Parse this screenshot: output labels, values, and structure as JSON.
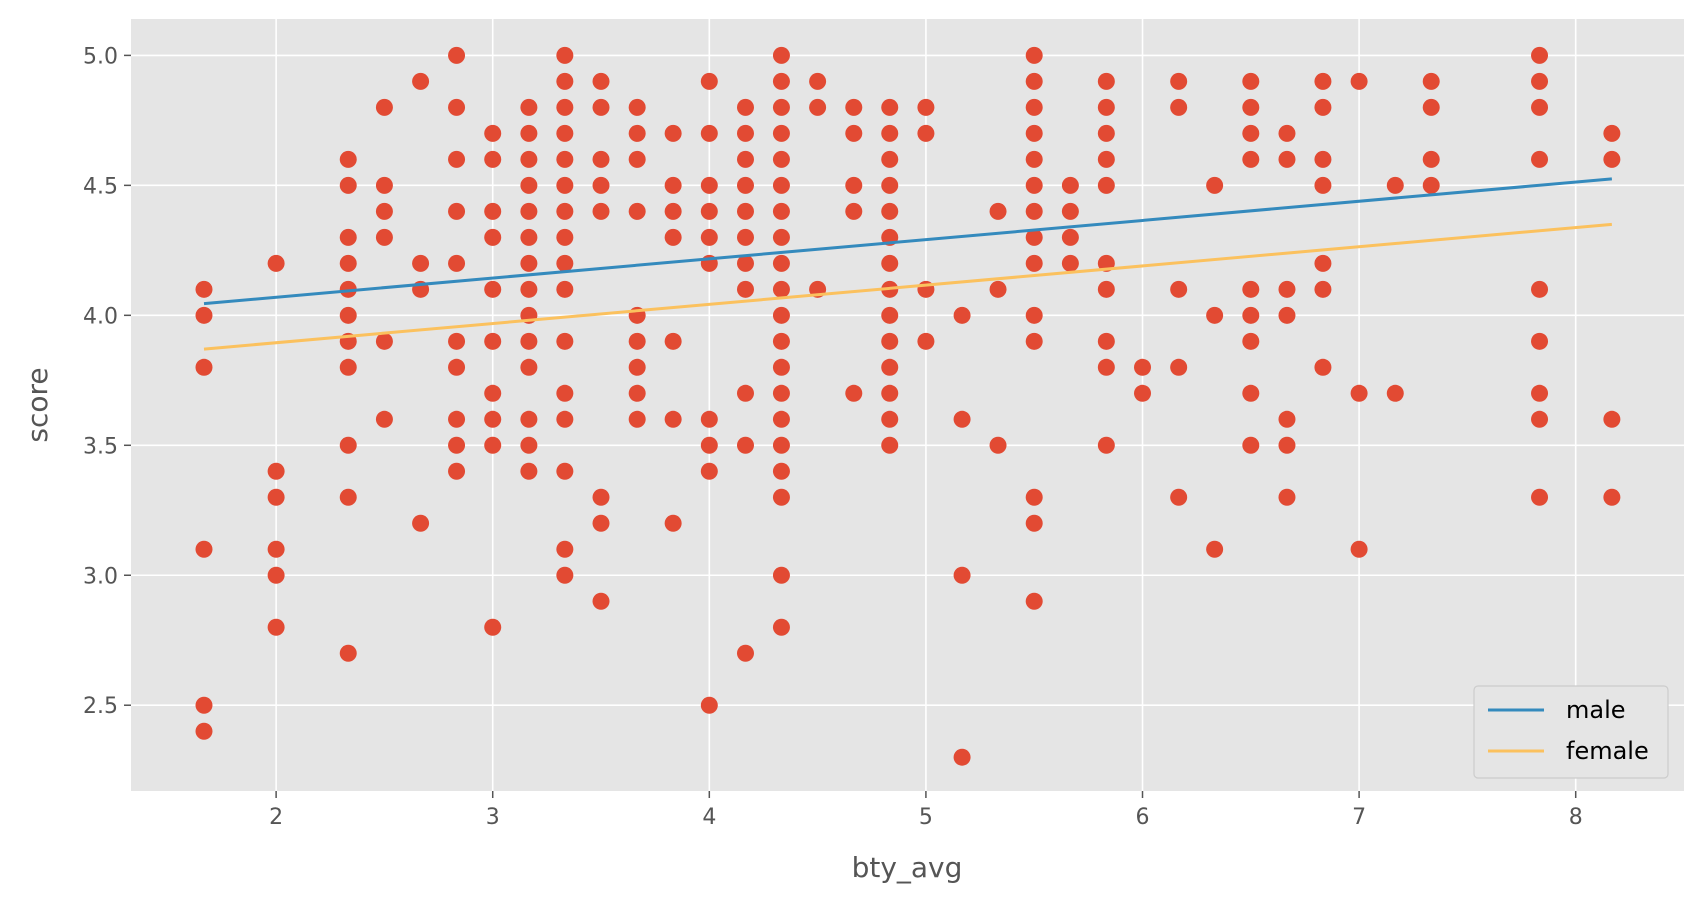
{
  "chart_data": {
    "type": "scatter",
    "title": "",
    "xlabel": "bty_avg",
    "ylabel": "score",
    "xlim": [
      1.33,
      8.5
    ],
    "ylim": [
      2.17,
      5.14
    ],
    "xticks": [
      "2",
      "3",
      "4",
      "5",
      "6",
      "7",
      "8"
    ],
    "yticks": [
      "2.5",
      "3.0",
      "3.5",
      "4.0",
      "4.5",
      "5.0"
    ],
    "grid": true,
    "legend_position": "bottom-right",
    "colors": {
      "background": "#e5e5e5",
      "grid": "#ffffff",
      "points": "#e24a33",
      "male": "#348abd",
      "female": "#fbc15e",
      "text": "#555555"
    },
    "points": [
      [
        1.667,
        4.1
      ],
      [
        1.667,
        4.0
      ],
      [
        1.667,
        3.8
      ],
      [
        1.667,
        3.1
      ],
      [
        1.667,
        2.5
      ],
      [
        1.667,
        2.4
      ],
      [
        2.0,
        4.2
      ],
      [
        2.0,
        3.4
      ],
      [
        2.0,
        3.3
      ],
      [
        2.0,
        3.1
      ],
      [
        2.0,
        3.0
      ],
      [
        2.0,
        2.8
      ],
      [
        2.333,
        4.6
      ],
      [
        2.333,
        4.5
      ],
      [
        2.333,
        4.3
      ],
      [
        2.333,
        4.2
      ],
      [
        2.333,
        4.1
      ],
      [
        2.333,
        4.0
      ],
      [
        2.333,
        3.9
      ],
      [
        2.333,
        3.8
      ],
      [
        2.333,
        3.5
      ],
      [
        2.333,
        3.3
      ],
      [
        2.333,
        2.7
      ],
      [
        2.5,
        4.8
      ],
      [
        2.5,
        4.5
      ],
      [
        2.5,
        4.4
      ],
      [
        2.5,
        4.3
      ],
      [
        2.5,
        3.9
      ],
      [
        2.5,
        3.6
      ],
      [
        2.667,
        4.9
      ],
      [
        2.667,
        4.2
      ],
      [
        2.667,
        4.1
      ],
      [
        2.667,
        3.2
      ],
      [
        2.833,
        5.0
      ],
      [
        2.833,
        4.8
      ],
      [
        2.833,
        4.6
      ],
      [
        2.833,
        4.4
      ],
      [
        2.833,
        4.2
      ],
      [
        2.833,
        3.9
      ],
      [
        2.833,
        3.8
      ],
      [
        2.833,
        3.6
      ],
      [
        2.833,
        3.5
      ],
      [
        2.833,
        3.4
      ],
      [
        3.0,
        4.7
      ],
      [
        3.0,
        4.6
      ],
      [
        3.0,
        4.4
      ],
      [
        3.0,
        4.3
      ],
      [
        3.0,
        4.1
      ],
      [
        3.0,
        3.9
      ],
      [
        3.0,
        3.7
      ],
      [
        3.0,
        3.6
      ],
      [
        3.0,
        3.5
      ],
      [
        3.0,
        2.8
      ],
      [
        3.167,
        4.8
      ],
      [
        3.167,
        4.7
      ],
      [
        3.167,
        4.6
      ],
      [
        3.167,
        4.5
      ],
      [
        3.167,
        4.4
      ],
      [
        3.167,
        4.3
      ],
      [
        3.167,
        4.2
      ],
      [
        3.167,
        4.1
      ],
      [
        3.167,
        4.0
      ],
      [
        3.167,
        3.9
      ],
      [
        3.167,
        3.8
      ],
      [
        3.167,
        3.6
      ],
      [
        3.167,
        3.5
      ],
      [
        3.167,
        3.4
      ],
      [
        3.333,
        5.0
      ],
      [
        3.333,
        4.9
      ],
      [
        3.333,
        4.8
      ],
      [
        3.333,
        4.7
      ],
      [
        3.333,
        4.6
      ],
      [
        3.333,
        4.5
      ],
      [
        3.333,
        4.4
      ],
      [
        3.333,
        4.3
      ],
      [
        3.333,
        4.2
      ],
      [
        3.333,
        4.1
      ],
      [
        3.333,
        3.9
      ],
      [
        3.333,
        3.7
      ],
      [
        3.333,
        3.6
      ],
      [
        3.333,
        3.4
      ],
      [
        3.333,
        3.1
      ],
      [
        3.333,
        3.0
      ],
      [
        3.5,
        4.9
      ],
      [
        3.5,
        4.8
      ],
      [
        3.5,
        4.6
      ],
      [
        3.5,
        4.5
      ],
      [
        3.5,
        4.4
      ],
      [
        3.5,
        3.3
      ],
      [
        3.5,
        3.2
      ],
      [
        3.5,
        2.9
      ],
      [
        3.667,
        4.8
      ],
      [
        3.667,
        4.7
      ],
      [
        3.667,
        4.6
      ],
      [
        3.667,
        4.4
      ],
      [
        3.667,
        4.0
      ],
      [
        3.667,
        3.9
      ],
      [
        3.667,
        3.8
      ],
      [
        3.667,
        3.7
      ],
      [
        3.667,
        3.6
      ],
      [
        3.833,
        4.7
      ],
      [
        3.833,
        4.5
      ],
      [
        3.833,
        4.4
      ],
      [
        3.833,
        4.3
      ],
      [
        3.833,
        3.9
      ],
      [
        3.833,
        3.6
      ],
      [
        3.833,
        3.2
      ],
      [
        4.0,
        4.9
      ],
      [
        4.0,
        4.7
      ],
      [
        4.0,
        4.5
      ],
      [
        4.0,
        4.4
      ],
      [
        4.0,
        4.3
      ],
      [
        4.0,
        4.2
      ],
      [
        4.0,
        3.6
      ],
      [
        4.0,
        3.5
      ],
      [
        4.0,
        3.4
      ],
      [
        4.0,
        2.5
      ],
      [
        4.167,
        4.8
      ],
      [
        4.167,
        4.7
      ],
      [
        4.167,
        4.6
      ],
      [
        4.167,
        4.5
      ],
      [
        4.167,
        4.4
      ],
      [
        4.167,
        4.3
      ],
      [
        4.167,
        4.2
      ],
      [
        4.167,
        4.1
      ],
      [
        4.167,
        3.7
      ],
      [
        4.167,
        3.5
      ],
      [
        4.167,
        2.7
      ],
      [
        4.333,
        5.0
      ],
      [
        4.333,
        4.9
      ],
      [
        4.333,
        4.8
      ],
      [
        4.333,
        4.7
      ],
      [
        4.333,
        4.6
      ],
      [
        4.333,
        4.5
      ],
      [
        4.333,
        4.4
      ],
      [
        4.333,
        4.3
      ],
      [
        4.333,
        4.2
      ],
      [
        4.333,
        4.1
      ],
      [
        4.333,
        4.0
      ],
      [
        4.333,
        3.9
      ],
      [
        4.333,
        3.8
      ],
      [
        4.333,
        3.7
      ],
      [
        4.333,
        3.6
      ],
      [
        4.333,
        3.5
      ],
      [
        4.333,
        3.4
      ],
      [
        4.333,
        3.3
      ],
      [
        4.333,
        3.0
      ],
      [
        4.333,
        2.8
      ],
      [
        4.5,
        4.9
      ],
      [
        4.5,
        4.8
      ],
      [
        4.5,
        4.1
      ],
      [
        4.667,
        4.8
      ],
      [
        4.667,
        4.7
      ],
      [
        4.667,
        4.5
      ],
      [
        4.667,
        4.4
      ],
      [
        4.667,
        3.7
      ],
      [
        4.833,
        4.8
      ],
      [
        4.833,
        4.7
      ],
      [
        4.833,
        4.6
      ],
      [
        4.833,
        4.5
      ],
      [
        4.833,
        4.4
      ],
      [
        4.833,
        4.3
      ],
      [
        4.833,
        4.2
      ],
      [
        4.833,
        4.1
      ],
      [
        4.833,
        4.0
      ],
      [
        4.833,
        3.9
      ],
      [
        4.833,
        3.8
      ],
      [
        4.833,
        3.7
      ],
      [
        4.833,
        3.6
      ],
      [
        4.833,
        3.5
      ],
      [
        5.0,
        4.8
      ],
      [
        5.0,
        4.7
      ],
      [
        5.0,
        4.1
      ],
      [
        5.0,
        3.9
      ],
      [
        5.167,
        4.0
      ],
      [
        5.167,
        3.6
      ],
      [
        5.167,
        3.0
      ],
      [
        5.167,
        2.3
      ],
      [
        5.333,
        4.4
      ],
      [
        5.333,
        4.1
      ],
      [
        5.333,
        3.5
      ],
      [
        5.5,
        5.0
      ],
      [
        5.5,
        4.9
      ],
      [
        5.5,
        4.8
      ],
      [
        5.5,
        4.7
      ],
      [
        5.5,
        4.6
      ],
      [
        5.5,
        4.5
      ],
      [
        5.5,
        4.4
      ],
      [
        5.5,
        4.3
      ],
      [
        5.5,
        4.2
      ],
      [
        5.5,
        4.0
      ],
      [
        5.5,
        3.9
      ],
      [
        5.5,
        3.3
      ],
      [
        5.5,
        3.2
      ],
      [
        5.5,
        2.9
      ],
      [
        5.667,
        4.5
      ],
      [
        5.667,
        4.4
      ],
      [
        5.667,
        4.3
      ],
      [
        5.667,
        4.2
      ],
      [
        5.833,
        4.9
      ],
      [
        5.833,
        4.8
      ],
      [
        5.833,
        4.7
      ],
      [
        5.833,
        4.6
      ],
      [
        5.833,
        4.5
      ],
      [
        5.833,
        4.2
      ],
      [
        5.833,
        4.1
      ],
      [
        5.833,
        3.9
      ],
      [
        5.833,
        3.8
      ],
      [
        5.833,
        3.5
      ],
      [
        6.0,
        3.8
      ],
      [
        6.0,
        3.7
      ],
      [
        6.167,
        4.9
      ],
      [
        6.167,
        4.8
      ],
      [
        6.167,
        4.1
      ],
      [
        6.167,
        3.8
      ],
      [
        6.167,
        3.3
      ],
      [
        6.333,
        4.5
      ],
      [
        6.333,
        4.0
      ],
      [
        6.333,
        3.1
      ],
      [
        6.5,
        4.9
      ],
      [
        6.5,
        4.8
      ],
      [
        6.5,
        4.7
      ],
      [
        6.5,
        4.6
      ],
      [
        6.5,
        4.1
      ],
      [
        6.5,
        4.0
      ],
      [
        6.5,
        3.9
      ],
      [
        6.5,
        3.7
      ],
      [
        6.5,
        3.5
      ],
      [
        6.667,
        4.7
      ],
      [
        6.667,
        4.6
      ],
      [
        6.667,
        4.1
      ],
      [
        6.667,
        4.0
      ],
      [
        6.667,
        3.6
      ],
      [
        6.667,
        3.5
      ],
      [
        6.667,
        3.3
      ],
      [
        6.833,
        4.9
      ],
      [
        6.833,
        4.8
      ],
      [
        6.833,
        4.6
      ],
      [
        6.833,
        4.5
      ],
      [
        6.833,
        4.2
      ],
      [
        6.833,
        4.1
      ],
      [
        6.833,
        3.8
      ],
      [
        7.0,
        4.9
      ],
      [
        7.0,
        3.7
      ],
      [
        7.0,
        3.1
      ],
      [
        7.167,
        4.5
      ],
      [
        7.167,
        3.7
      ],
      [
        7.333,
        4.9
      ],
      [
        7.333,
        4.8
      ],
      [
        7.333,
        4.6
      ],
      [
        7.333,
        4.5
      ],
      [
        7.833,
        5.0
      ],
      [
        7.833,
        4.9
      ],
      [
        7.833,
        4.8
      ],
      [
        7.833,
        4.6
      ],
      [
        7.833,
        4.1
      ],
      [
        7.833,
        3.9
      ],
      [
        7.833,
        3.7
      ],
      [
        7.833,
        3.6
      ],
      [
        7.833,
        3.3
      ],
      [
        8.167,
        4.7
      ],
      [
        8.167,
        4.6
      ],
      [
        8.167,
        3.6
      ],
      [
        8.167,
        3.3
      ]
    ],
    "series": [
      {
        "name": "male",
        "x": [
          1.667,
          8.167
        ],
        "y": [
          4.045,
          4.525
        ]
      },
      {
        "name": "female",
        "x": [
          1.667,
          8.167
        ],
        "y": [
          3.87,
          4.35
        ]
      }
    ]
  }
}
